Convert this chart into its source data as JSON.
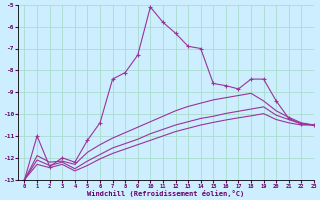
{
  "xlabel": "Windchill (Refroidissement éolien,°C)",
  "background_color": "#cceeff",
  "grid_color": "#aaddcc",
  "line_color": "#993399",
  "xlim": [
    -0.5,
    23
  ],
  "ylim": [
    -13,
    -5
  ],
  "xticks": [
    0,
    1,
    2,
    3,
    4,
    5,
    6,
    7,
    8,
    9,
    10,
    11,
    12,
    13,
    14,
    15,
    16,
    17,
    18,
    19,
    20,
    21,
    22,
    23
  ],
  "yticks": [
    -13,
    -12,
    -11,
    -10,
    -9,
    -8,
    -7,
    -6,
    -5
  ],
  "series": [
    {
      "x": [
        0,
        1,
        2,
        3,
        4,
        5,
        6,
        7,
        8,
        9,
        10,
        11,
        12,
        13,
        14,
        15,
        16,
        17,
        18,
        19,
        20,
        21,
        22,
        23
      ],
      "y": [
        -13,
        -11.0,
        -12.4,
        -12.0,
        -12.2,
        -11.2,
        -10.4,
        -8.4,
        -8.1,
        -7.3,
        -5.1,
        -5.8,
        -6.3,
        -6.9,
        -7.0,
        -8.6,
        -8.7,
        -8.85,
        -8.4,
        -8.4,
        -9.4,
        -10.2,
        -10.45,
        -10.5
      ],
      "marker": "+"
    },
    {
      "x": [
        0,
        1,
        2,
        3,
        4,
        5,
        6,
        7,
        8,
        9,
        10,
        11,
        12,
        13,
        14,
        15,
        16,
        17,
        18,
        19,
        20,
        21,
        22,
        23
      ],
      "y": [
        -13,
        -11.9,
        -12.2,
        -12.15,
        -12.3,
        -11.75,
        -11.4,
        -11.1,
        -10.85,
        -10.6,
        -10.35,
        -10.1,
        -9.85,
        -9.65,
        -9.5,
        -9.35,
        -9.25,
        -9.15,
        -9.05,
        -9.4,
        -9.85,
        -10.15,
        -10.4,
        -10.5
      ],
      "marker": null
    },
    {
      "x": [
        0,
        1,
        2,
        3,
        4,
        5,
        6,
        7,
        8,
        9,
        10,
        11,
        12,
        13,
        14,
        15,
        16,
        17,
        18,
        19,
        20,
        21,
        22,
        23
      ],
      "y": [
        -13,
        -12.1,
        -12.35,
        -12.2,
        -12.5,
        -12.15,
        -11.85,
        -11.55,
        -11.35,
        -11.15,
        -10.9,
        -10.7,
        -10.5,
        -10.35,
        -10.2,
        -10.1,
        -9.97,
        -9.87,
        -9.77,
        -9.67,
        -10.05,
        -10.25,
        -10.45,
        -10.5
      ],
      "marker": null
    },
    {
      "x": [
        0,
        1,
        2,
        3,
        4,
        5,
        6,
        7,
        8,
        9,
        10,
        11,
        12,
        13,
        14,
        15,
        16,
        17,
        18,
        19,
        20,
        21,
        22,
        23
      ],
      "y": [
        -13,
        -12.3,
        -12.45,
        -12.3,
        -12.6,
        -12.35,
        -12.05,
        -11.8,
        -11.6,
        -11.4,
        -11.2,
        -11.0,
        -10.8,
        -10.65,
        -10.5,
        -10.38,
        -10.27,
        -10.17,
        -10.08,
        -9.98,
        -10.25,
        -10.4,
        -10.5,
        -10.5
      ],
      "marker": null
    }
  ]
}
